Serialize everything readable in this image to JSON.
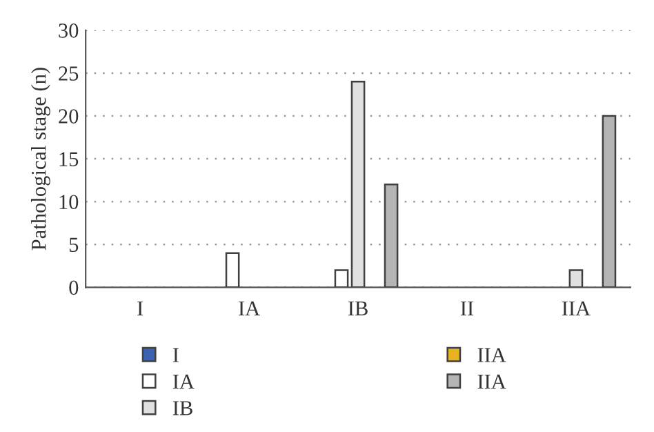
{
  "chart_data": {
    "type": "bar",
    "ylabel": "Pathological stage (n)",
    "categories": [
      "I",
      "IA",
      "IB",
      "II",
      "IIA"
    ],
    "series": [
      {
        "name": "I",
        "color": "#3a62b0",
        "values": [
          null,
          null,
          null,
          null,
          null
        ]
      },
      {
        "name": "IA",
        "color": "#ffffff",
        "values": [
          null,
          4,
          2,
          null,
          null
        ]
      },
      {
        "name": "IB",
        "color": "#e0e0e0",
        "values": [
          null,
          null,
          24,
          null,
          2
        ]
      },
      {
        "name": "IIA",
        "color": "#e8b320",
        "values": [
          null,
          null,
          null,
          null,
          null
        ]
      },
      {
        "name": "IIA",
        "color": "#b4b4b4",
        "values": [
          null,
          null,
          12,
          null,
          20
        ]
      }
    ],
    "ylim": [
      0,
      30
    ],
    "yticks": [
      0,
      5,
      10,
      15,
      20,
      25,
      30
    ],
    "grid": "y",
    "legend": "bottom"
  }
}
